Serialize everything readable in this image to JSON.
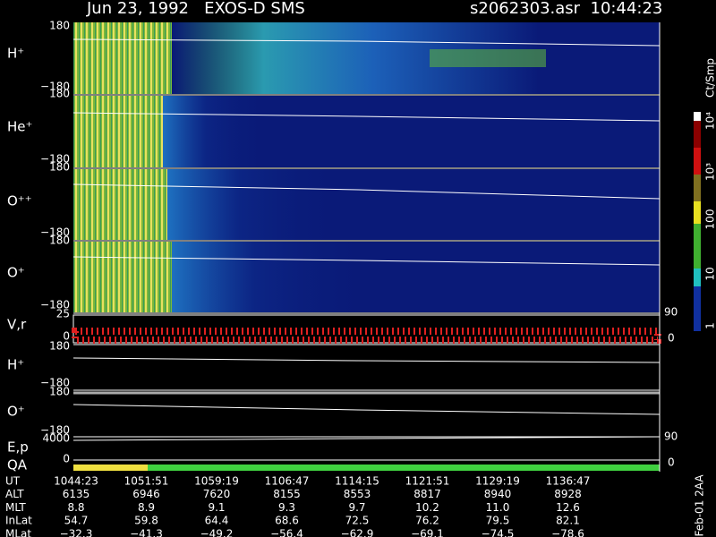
{
  "header": {
    "title": "Jun 23, 1992   EXOS-D SMS",
    "file": "s2062303.asr  10:44:23"
  },
  "panels": [
    {
      "label": "H⁺",
      "top": "180",
      "bottom": "−180"
    },
    {
      "label": "He⁺",
      "top": "180",
      "bottom": "−180"
    },
    {
      "label": "O⁺⁺",
      "top": "180",
      "bottom": "−180"
    },
    {
      "label": "O⁺",
      "top": "180",
      "bottom": "−180"
    },
    {
      "label": "V,r",
      "top": "25",
      "bottom": "0"
    },
    {
      "label": "H⁺",
      "top": "180",
      "bottom": "−180"
    },
    {
      "label": "O⁺",
      "top": "180",
      "bottom": "−180"
    },
    {
      "label": "E,p",
      "top": "4000",
      "bottom": "0"
    },
    {
      "label": "QA"
    }
  ],
  "right_labels": [
    "90",
    "0",
    "90",
    "0"
  ],
  "colorbar": {
    "title": "Ct/Smp",
    "labels": [
      "10⁴",
      "10³",
      "100",
      "10",
      "1"
    ]
  },
  "footnote": "Feb-01 2AA",
  "table": {
    "rows": [
      {
        "label": "UT",
        "cells": [
          "1044:23",
          "1051:51",
          "1059:19",
          "1106:47",
          "1114:15",
          "1121:51",
          "1129:19",
          "1136:47"
        ]
      },
      {
        "label": "ALT",
        "cells": [
          "6135",
          "6946",
          "7620",
          "8155",
          "8553",
          "8817",
          "8940",
          "8928"
        ]
      },
      {
        "label": "MLT",
        "cells": [
          "8.8",
          "8.9",
          "9.1",
          "9.3",
          "9.7",
          "10.2",
          "11.0",
          "12.6"
        ]
      },
      {
        "label": "InLat",
        "cells": [
          "54.7",
          "59.8",
          "64.4",
          "68.6",
          "72.5",
          "76.2",
          "79.5",
          "82.1"
        ]
      },
      {
        "label": "MLat",
        "cells": [
          "−32.3",
          "−41.3",
          "−49.2",
          "−56.4",
          "−62.9",
          "−69.1",
          "−74.5",
          "−78.6"
        ]
      }
    ]
  }
}
